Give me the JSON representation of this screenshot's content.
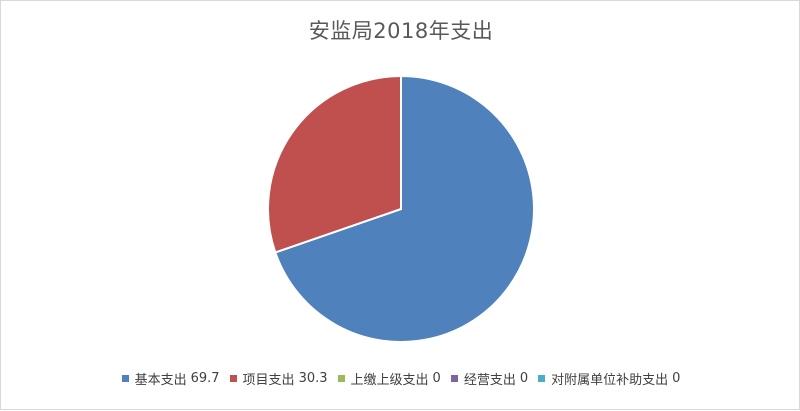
{
  "chart_data": {
    "type": "pie",
    "title": "安监局2018年支出",
    "categories": [
      "基本支出",
      "项目支出",
      "上缴上级支出",
      "经营支出",
      "对附属单位补助支出"
    ],
    "values": [
      69.7,
      30.3,
      0,
      0,
      0
    ],
    "colors": [
      "#4f81bd",
      "#c0504d",
      "#9bbb59",
      "#8064a2",
      "#4bacc6"
    ],
    "legend_position": "bottom"
  }
}
